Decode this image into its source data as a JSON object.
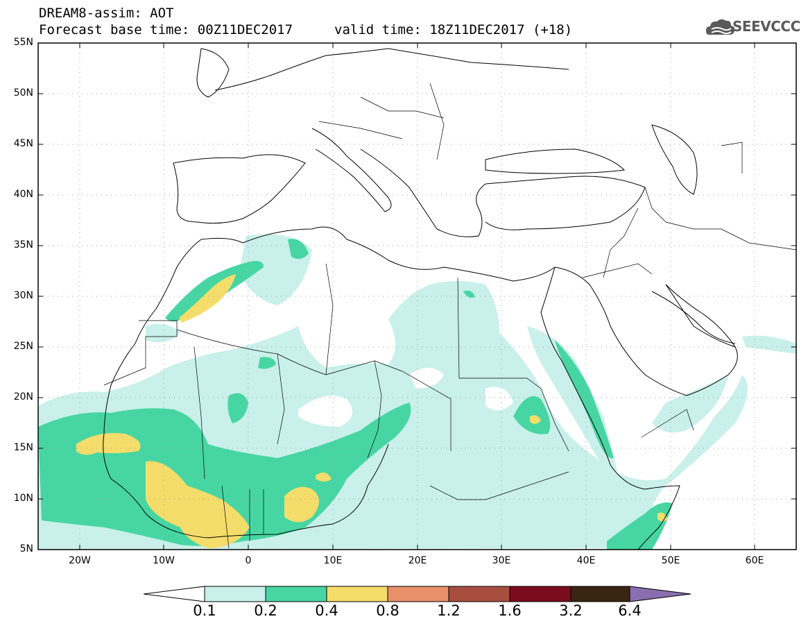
{
  "header": {
    "title": "DREAM8-assim: AOT",
    "forecast_base": "Forecast base time: 00Z11DEC2017",
    "valid_time": "valid time: 18Z11DEC2017 (+18)",
    "logo_text": "SEEVCCC"
  },
  "map": {
    "lat_range": [
      5,
      55
    ],
    "lon_range": [
      -25,
      65
    ],
    "lat_labels": [
      "55N",
      "50N",
      "45N",
      "40N",
      "35N",
      "30N",
      "25N",
      "20N",
      "15N",
      "10N",
      "5N"
    ],
    "lon_labels": [
      "20W",
      "10W",
      "0",
      "10E",
      "20E",
      "30E",
      "40E",
      "50E",
      "60E"
    ],
    "grid": true,
    "field": "AOT"
  },
  "legend": {
    "levels": [
      "0.1",
      "0.2",
      "0.4",
      "0.8",
      "1.2",
      "1.6",
      "3.2",
      "6.4"
    ],
    "colors": [
      "#c9f0ea",
      "#47d6a3",
      "#f5dd6b",
      "#e8916a",
      "#a84e3f",
      "#7a0c1e",
      "#3a2412",
      "#8a6eb0"
    ]
  }
}
